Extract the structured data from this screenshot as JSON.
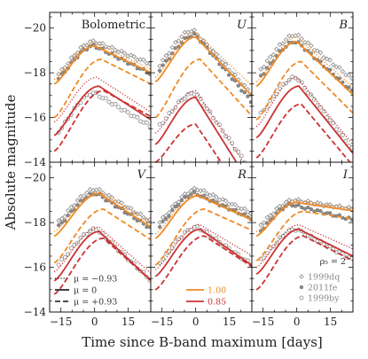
{
  "chart_data": {
    "type": "line",
    "xlabel": "Time since B-band maximum [days]",
    "ylabel": "Absolute magnitude",
    "xlim": [
      -20,
      25
    ],
    "ylim": [
      -14,
      -20.7
    ],
    "x_ticks": [
      -15,
      0,
      15
    ],
    "y_ticks": [
      -20,
      -18,
      -16,
      -14
    ],
    "x_tick_labels": [
      "−15",
      "0",
      "15"
    ],
    "y_tick_labels": [
      "−20",
      "−18",
      "−16",
      "−14"
    ],
    "colors": {
      "rho_100": "#f08a24",
      "rho_085": "#cc3333",
      "obs": "#8a8a8a"
    },
    "legend_line_styles": [
      {
        "style": "dotted",
        "label": "μ = −0.93"
      },
      {
        "style": "solid",
        "label": "μ = 0"
      },
      {
        "style": "dashed",
        "label": "μ = +0.93"
      }
    ],
    "legend_rho": [
      {
        "label": "1.00",
        "color": "#f08a24"
      },
      {
        "label": "0.85",
        "color": "#cc3333"
      }
    ],
    "legend_obs_title": "ρ₅ = 2",
    "legend_obs": [
      {
        "label": "1999dq",
        "marker": "diamond"
      },
      {
        "label": "2011fe",
        "marker": "circle"
      },
      {
        "label": "1999by",
        "marker": "circle-open"
      }
    ],
    "panels": [
      {
        "label": "Bolometric",
        "models": [
          {
            "rho": "1.00",
            "style": "dotted",
            "peak_t": 0,
            "peak_mag": -19.35,
            "start_mag": -17.7,
            "decline_20": 0.95
          },
          {
            "rho": "1.00",
            "style": "solid",
            "peak_t": 0,
            "peak_mag": -19.2,
            "start_mag": -17.5,
            "decline_20": 0.95
          },
          {
            "rho": "1.00",
            "style": "dashed",
            "peak_t": 3,
            "peak_mag": -18.6,
            "start_mag": -16.0,
            "decline_20": 1.0
          },
          {
            "rho": "0.85",
            "style": "dotted",
            "peak_t": 1,
            "peak_mag": -17.8,
            "start_mag": -15.8,
            "decline_20": 1.3
          },
          {
            "rho": "0.85",
            "style": "solid",
            "peak_t": 2,
            "peak_mag": -17.4,
            "start_mag": -15.2,
            "decline_20": 1.3
          },
          {
            "rho": "0.85",
            "style": "dashed",
            "peak_t": 4,
            "peak_mag": -17.2,
            "start_mag": -14.5,
            "decline_20": 1.1
          }
        ],
        "obs": [
          {
            "name": "1999dq",
            "peak_t": 0,
            "peak_mag": -19.4,
            "start_mag": -17.8,
            "decline_20": 0.8
          },
          {
            "name": "2011fe",
            "peak_t": 0,
            "peak_mag": -19.2,
            "start_mag": -17.6,
            "decline_20": 1.0
          },
          {
            "name": "1999by",
            "peak_t": 0,
            "peak_mag": -17.1,
            "start_mag": -15.2,
            "decline_20": 1.2
          }
        ]
      },
      {
        "label": "U",
        "models": [
          {
            "rho": "1.00",
            "style": "dotted",
            "peak_t": 0,
            "peak_mag": -19.8,
            "start_mag": -17.8,
            "decline_20": 1.9
          },
          {
            "rho": "1.00",
            "style": "solid",
            "peak_t": 0,
            "peak_mag": -19.6,
            "start_mag": -17.6,
            "decline_20": 2.1
          },
          {
            "rho": "1.00",
            "style": "dashed",
            "peak_t": 2,
            "peak_mag": -18.6,
            "start_mag": -16.0,
            "decline_20": 2.2
          },
          {
            "rho": "0.85",
            "style": "dotted",
            "peak_t": 0,
            "peak_mag": -17.2,
            "start_mag": -15.3,
            "decline_20": 3.0
          },
          {
            "rho": "0.85",
            "style": "solid",
            "peak_t": 0,
            "peak_mag": -16.9,
            "start_mag": -14.8,
            "decline_20": 3.2
          },
          {
            "rho": "0.85",
            "style": "dashed",
            "peak_t": 0,
            "peak_mag": -15.7,
            "start_mag": -14.0,
            "decline_20": 3.0
          }
        ],
        "obs": [
          {
            "name": "1999dq",
            "peak_t": -1,
            "peak_mag": -19.9,
            "start_mag": -18.2,
            "decline_20": 2.2
          },
          {
            "name": "2011fe",
            "peak_t": 0,
            "peak_mag": -19.7,
            "start_mag": -18.0,
            "decline_20": 2.4
          },
          {
            "name": "1999by",
            "peak_t": 0,
            "peak_mag": -17.1,
            "start_mag": -15.5,
            "decline_20": 2.8
          }
        ]
      },
      {
        "label": "B",
        "models": [
          {
            "rho": "1.00",
            "style": "dotted",
            "peak_t": 0,
            "peak_mag": -19.6,
            "start_mag": -17.6,
            "decline_20": 1.8
          },
          {
            "rho": "1.00",
            "style": "solid",
            "peak_t": 0,
            "peak_mag": -19.4,
            "start_mag": -17.4,
            "decline_20": 1.9
          },
          {
            "rho": "1.00",
            "style": "dashed",
            "peak_t": 2,
            "peak_mag": -18.5,
            "start_mag": -15.9,
            "decline_20": 2.0
          },
          {
            "rho": "0.85",
            "style": "dotted",
            "peak_t": 0,
            "peak_mag": -17.8,
            "start_mag": -15.6,
            "decline_20": 2.4
          },
          {
            "rho": "0.85",
            "style": "solid",
            "peak_t": 1,
            "peak_mag": -17.4,
            "start_mag": -15.1,
            "decline_20": 2.5
          },
          {
            "rho": "0.85",
            "style": "dashed",
            "peak_t": 2,
            "peak_mag": -16.6,
            "start_mag": -14.2,
            "decline_20": 2.4
          }
        ],
        "obs": [
          {
            "name": "1999dq",
            "peak_t": 0,
            "peak_mag": -19.7,
            "start_mag": -18.0,
            "decline_20": 1.6
          },
          {
            "name": "2011fe",
            "peak_t": 0,
            "peak_mag": -19.4,
            "start_mag": -17.7,
            "decline_20": 1.8
          },
          {
            "name": "1999by",
            "peak_t": 0,
            "peak_mag": -17.8,
            "start_mag": -16.0,
            "decline_20": 2.6
          }
        ]
      },
      {
        "label": "V",
        "models": [
          {
            "rho": "1.00",
            "style": "dotted",
            "peak_t": 2,
            "peak_mag": -19.4,
            "start_mag": -17.6,
            "decline_20": 1.2
          },
          {
            "rho": "1.00",
            "style": "solid",
            "peak_t": 2,
            "peak_mag": -19.3,
            "start_mag": -17.4,
            "decline_20": 1.3
          },
          {
            "rho": "1.00",
            "style": "dashed",
            "peak_t": 4,
            "peak_mag": -18.6,
            "start_mag": -16.2,
            "decline_20": 1.3
          },
          {
            "rho": "0.85",
            "style": "dotted",
            "peak_t": 2,
            "peak_mag": -17.8,
            "start_mag": -15.8,
            "decline_20": 1.8
          },
          {
            "rho": "0.85",
            "style": "solid",
            "peak_t": 2,
            "peak_mag": -17.6,
            "start_mag": -15.4,
            "decline_20": 1.9
          },
          {
            "rho": "0.85",
            "style": "dashed",
            "peak_t": 4,
            "peak_mag": -17.3,
            "start_mag": -14.8,
            "decline_20": 1.8
          }
        ],
        "obs": [
          {
            "name": "1999dq",
            "peak_t": 1,
            "peak_mag": -19.5,
            "start_mag": -17.9,
            "decline_20": 1.2
          },
          {
            "name": "2011fe",
            "peak_t": 1,
            "peak_mag": -19.3,
            "start_mag": -17.7,
            "decline_20": 1.3
          },
          {
            "name": "1999by",
            "peak_t": 1,
            "peak_mag": -17.7,
            "start_mag": -16.0,
            "decline_20": 1.9
          }
        ]
      },
      {
        "label": "R",
        "models": [
          {
            "rho": "1.00",
            "style": "dotted",
            "peak_t": 1,
            "peak_mag": -19.3,
            "start_mag": -17.5,
            "decline_20": 0.9
          },
          {
            "rho": "1.00",
            "style": "solid",
            "peak_t": 1,
            "peak_mag": -19.2,
            "start_mag": -17.3,
            "decline_20": 0.9
          },
          {
            "rho": "1.00",
            "style": "dashed",
            "peak_t": 4,
            "peak_mag": -18.6,
            "start_mag": -16.1,
            "decline_20": 0.9
          },
          {
            "rho": "0.85",
            "style": "dotted",
            "peak_t": 2,
            "peak_mag": -17.9,
            "start_mag": -15.9,
            "decline_20": 1.2
          },
          {
            "rho": "0.85",
            "style": "solid",
            "peak_t": 2,
            "peak_mag": -17.7,
            "start_mag": -15.6,
            "decline_20": 1.4
          },
          {
            "rho": "0.85",
            "style": "dashed",
            "peak_t": 4,
            "peak_mag": -17.4,
            "start_mag": -15.0,
            "decline_20": 1.3
          }
        ],
        "obs": [
          {
            "name": "1999dq",
            "peak_t": 1,
            "peak_mag": -19.5,
            "start_mag": -17.9,
            "decline_20": 0.9
          },
          {
            "name": "2011fe",
            "peak_t": 0,
            "peak_mag": -19.3,
            "start_mag": -17.7,
            "decline_20": 0.9
          },
          {
            "name": "1999by",
            "peak_t": 1,
            "peak_mag": -17.8,
            "start_mag": -16.1,
            "decline_20": 1.4
          }
        ]
      },
      {
        "label": "I",
        "models": [
          {
            "rho": "1.00",
            "style": "dotted",
            "peak_t": 0,
            "peak_mag": -19.0,
            "start_mag": -17.6,
            "decline_20": 0.3
          },
          {
            "rho": "1.00",
            "style": "solid",
            "peak_t": 0,
            "peak_mag": -18.9,
            "start_mag": -17.4,
            "decline_20": 0.3
          },
          {
            "rho": "1.00",
            "style": "dashed",
            "peak_t": 3,
            "peak_mag": -18.5,
            "start_mag": -16.3,
            "decline_20": 0.3
          },
          {
            "rho": "0.85",
            "style": "dotted",
            "peak_t": 1,
            "peak_mag": -17.9,
            "start_mag": -16.0,
            "decline_20": 0.9
          },
          {
            "rho": "0.85",
            "style": "solid",
            "peak_t": 1,
            "peak_mag": -17.7,
            "start_mag": -15.7,
            "decline_20": 1.0
          },
          {
            "rho": "0.85",
            "style": "dashed",
            "peak_t": 3,
            "peak_mag": -17.4,
            "start_mag": -15.0,
            "decline_20": 1.0
          }
        ],
        "obs": [
          {
            "name": "1999dq",
            "peak_t": -1,
            "peak_mag": -19.0,
            "start_mag": -17.8,
            "decline_20": 0.3
          },
          {
            "name": "2011fe",
            "peak_t": -2,
            "peak_mag": -18.8,
            "start_mag": -17.5,
            "decline_20": 0.5
          },
          {
            "name": "1999by",
            "peak_t": 0,
            "peak_mag": -17.7,
            "start_mag": -16.2,
            "decline_20": 1.1
          }
        ]
      }
    ]
  }
}
